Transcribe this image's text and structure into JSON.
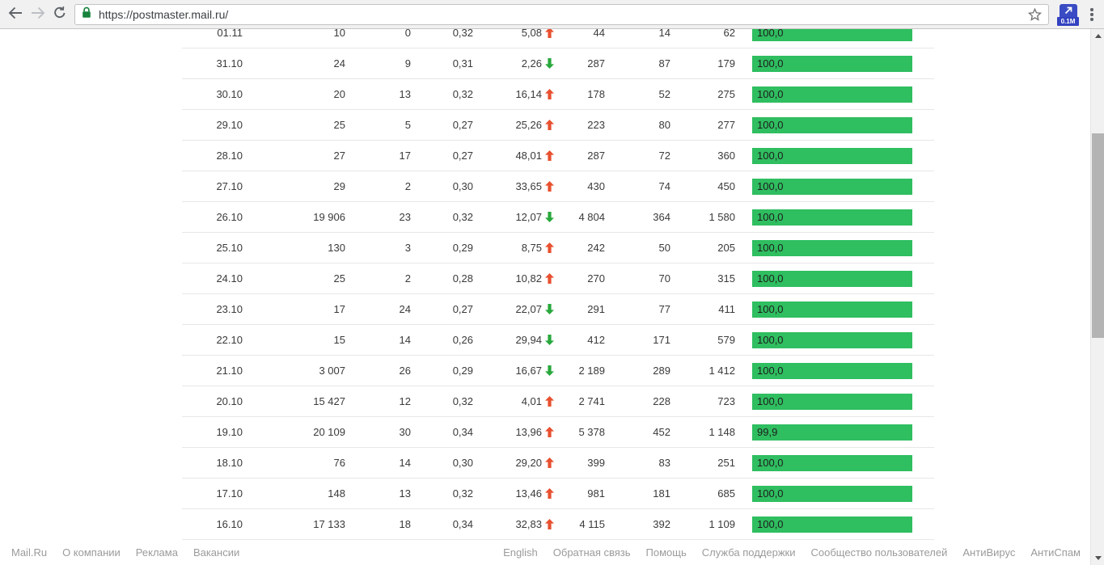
{
  "browser": {
    "url": "https://postmaster.mail.ru/",
    "extension_badge": "0.1M"
  },
  "colors": {
    "bar_green": "#2fbe60",
    "trend_up_red": "#e8502f",
    "trend_down_green": "#28a83c"
  },
  "table": {
    "rows": [
      {
        "date": "01.11",
        "col2": "10",
        "col3": "0",
        "col4": "0,32",
        "trend_value": "5,08",
        "trend": "up",
        "col6": "44",
        "col7": "14",
        "col8": "62",
        "bar_label": "100,0"
      },
      {
        "date": "31.10",
        "col2": "24",
        "col3": "9",
        "col4": "0,31",
        "trend_value": "2,26",
        "trend": "down",
        "col6": "287",
        "col7": "87",
        "col8": "179",
        "bar_label": "100,0"
      },
      {
        "date": "30.10",
        "col2": "20",
        "col3": "13",
        "col4": "0,32",
        "trend_value": "16,14",
        "trend": "up",
        "col6": "178",
        "col7": "52",
        "col8": "275",
        "bar_label": "100,0"
      },
      {
        "date": "29.10",
        "col2": "25",
        "col3": "5",
        "col4": "0,27",
        "trend_value": "25,26",
        "trend": "up",
        "col6": "223",
        "col7": "80",
        "col8": "277",
        "bar_label": "100,0"
      },
      {
        "date": "28.10",
        "col2": "27",
        "col3": "17",
        "col4": "0,27",
        "trend_value": "48,01",
        "trend": "up",
        "col6": "287",
        "col7": "72",
        "col8": "360",
        "bar_label": "100,0"
      },
      {
        "date": "27.10",
        "col2": "29",
        "col3": "2",
        "col4": "0,30",
        "trend_value": "33,65",
        "trend": "up",
        "col6": "430",
        "col7": "74",
        "col8": "450",
        "bar_label": "100,0"
      },
      {
        "date": "26.10",
        "col2": "19 906",
        "col3": "23",
        "col4": "0,32",
        "trend_value": "12,07",
        "trend": "down",
        "col6": "4 804",
        "col7": "364",
        "col8": "1 580",
        "bar_label": "100,0"
      },
      {
        "date": "25.10",
        "col2": "130",
        "col3": "3",
        "col4": "0,29",
        "trend_value": "8,75",
        "trend": "up",
        "col6": "242",
        "col7": "50",
        "col8": "205",
        "bar_label": "100,0"
      },
      {
        "date": "24.10",
        "col2": "25",
        "col3": "2",
        "col4": "0,28",
        "trend_value": "10,82",
        "trend": "up",
        "col6": "270",
        "col7": "70",
        "col8": "315",
        "bar_label": "100,0"
      },
      {
        "date": "23.10",
        "col2": "17",
        "col3": "24",
        "col4": "0,27",
        "trend_value": "22,07",
        "trend": "down",
        "col6": "291",
        "col7": "77",
        "col8": "411",
        "bar_label": "100,0"
      },
      {
        "date": "22.10",
        "col2": "15",
        "col3": "14",
        "col4": "0,26",
        "trend_value": "29,94",
        "trend": "down",
        "col6": "412",
        "col7": "171",
        "col8": "579",
        "bar_label": "100,0"
      },
      {
        "date": "21.10",
        "col2": "3 007",
        "col3": "26",
        "col4": "0,29",
        "trend_value": "16,67",
        "trend": "down",
        "col6": "2 189",
        "col7": "289",
        "col8": "1 412",
        "bar_label": "100,0"
      },
      {
        "date": "20.10",
        "col2": "15 427",
        "col3": "12",
        "col4": "0,32",
        "trend_value": "4,01",
        "trend": "up",
        "col6": "2 741",
        "col7": "228",
        "col8": "723",
        "bar_label": "100,0"
      },
      {
        "date": "19.10",
        "col2": "20 109",
        "col3": "30",
        "col4": "0,34",
        "trend_value": "13,96",
        "trend": "up",
        "col6": "5 378",
        "col7": "452",
        "col8": "1 148",
        "bar_label": "99,9"
      },
      {
        "date": "18.10",
        "col2": "76",
        "col3": "14",
        "col4": "0,30",
        "trend_value": "29,20",
        "trend": "up",
        "col6": "399",
        "col7": "83",
        "col8": "251",
        "bar_label": "100,0"
      },
      {
        "date": "17.10",
        "col2": "148",
        "col3": "13",
        "col4": "0,32",
        "trend_value": "13,46",
        "trend": "up",
        "col6": "981",
        "col7": "181",
        "col8": "685",
        "bar_label": "100,0"
      },
      {
        "date": "16.10",
        "col2": "17 133",
        "col3": "18",
        "col4": "0,34",
        "trend_value": "32,83",
        "trend": "up",
        "col6": "4 115",
        "col7": "392",
        "col8": "1 109",
        "bar_label": "100,0"
      }
    ]
  },
  "footer": {
    "left_links": [
      "Mail.Ru",
      "О компании",
      "Реклама",
      "Вакансии"
    ],
    "right_links": [
      "English",
      "Обратная связь",
      "Помощь",
      "Служба поддержки",
      "Сообщество пользователей",
      "АнтиВирус",
      "АнтиСпам"
    ]
  }
}
